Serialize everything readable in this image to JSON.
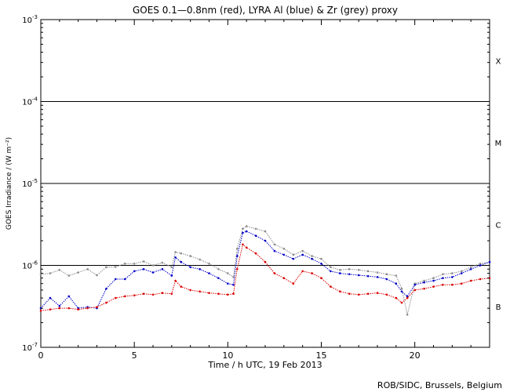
{
  "chart_data": {
    "type": "scatter",
    "title": "GOES 0.1—0.8nm (red), LYRA Al (blue) & Zr (grey) proxy",
    "xlabel": "Time / h UTC, 19 Feb 2013",
    "ylabel": "GOES Irradiance / (W m⁻²)",
    "xlim": [
      0,
      24
    ],
    "ylim": [
      1e-07,
      0.001
    ],
    "yscale": "log",
    "x_ticks": [
      0,
      5,
      10,
      15,
      20
    ],
    "x_tick_labels": [
      "0",
      "5",
      "10",
      "15",
      "20"
    ],
    "y_ticks": [
      {
        "value": 1e-07,
        "base": "10",
        "exp": "-7"
      },
      {
        "value": 1e-06,
        "base": "10",
        "exp": "-6"
      },
      {
        "value": 1e-05,
        "base": "10",
        "exp": "-5"
      },
      {
        "value": 0.0001,
        "base": "10",
        "exp": "-4"
      },
      {
        "value": 0.001,
        "base": "10",
        "exp": "-3"
      }
    ],
    "flare_classes": [
      {
        "label": "X",
        "center": 0.000316
      },
      {
        "label": "M",
        "center": 3.16e-05
      },
      {
        "label": "C",
        "center": 3.16e-06
      },
      {
        "label": "B",
        "center": 3.16e-07
      }
    ],
    "threshold_lines": [
      1e-06,
      1e-05,
      0.0001
    ],
    "series": [
      {
        "name": "Zr (grey) proxy",
        "color": "#8c8c8c",
        "x": [
          0,
          0.5,
          1,
          1.5,
          2,
          2.5,
          3,
          3.5,
          4,
          4.5,
          5,
          5.5,
          6,
          6.5,
          7,
          7.2,
          7.5,
          8,
          8.5,
          9,
          9.5,
          10,
          10.3,
          10.5,
          10.8,
          11,
          11.5,
          12,
          12.5,
          13,
          13.5,
          14,
          14.5,
          15,
          15.5,
          16,
          16.5,
          17,
          17.5,
          18,
          18.5,
          19,
          19.3,
          19.6,
          20,
          20.5,
          21,
          21.5,
          22,
          22.5,
          23,
          23.5,
          24
        ],
        "y": [
          7.8e-07,
          8e-07,
          8.8e-07,
          7.5e-07,
          8.2e-07,
          9e-07,
          7.6e-07,
          9.5e-07,
          9.6e-07,
          1.05e-06,
          1.05e-06,
          1.12e-06,
          1e-06,
          1.08e-06,
          9.5e-07,
          1.45e-06,
          1.4e-06,
          1.3e-06,
          1.18e-06,
          1.05e-06,
          9e-07,
          8e-07,
          7.2e-07,
          1.6e-06,
          2.8e-06,
          3e-06,
          2.8e-06,
          2.6e-06,
          1.8e-06,
          1.6e-06,
          1.35e-06,
          1.5e-06,
          1.3e-06,
          1.2e-06,
          9.5e-07,
          8.8e-07,
          9e-07,
          8.8e-07,
          8.5e-07,
          8.2e-07,
          7.8e-07,
          7.5e-07,
          5.2e-07,
          2.5e-07,
          6e-07,
          6.5e-07,
          7e-07,
          7.8e-07,
          8e-07,
          8.5e-07,
          9.5e-07,
          1.05e-06,
          1.1e-06
        ]
      },
      {
        "name": "LYRA Al (blue)",
        "color": "#0000c8",
        "x": [
          0,
          0.5,
          1,
          1.5,
          2,
          2.5,
          3,
          3.5,
          4,
          4.5,
          5,
          5.5,
          6,
          6.5,
          7,
          7.2,
          7.5,
          8,
          8.5,
          9,
          9.5,
          10,
          10.3,
          10.5,
          10.8,
          11,
          11.5,
          12,
          12.5,
          13,
          13.5,
          14,
          14.5,
          15,
          15.5,
          16,
          16.5,
          17,
          17.5,
          18,
          18.5,
          19,
          19.3,
          19.6,
          20,
          20.5,
          21,
          21.5,
          22,
          22.5,
          23,
          23.5,
          24
        ],
        "y": [
          3e-07,
          4e-07,
          3.2e-07,
          4.2e-07,
          3e-07,
          3.1e-07,
          3e-07,
          5.2e-07,
          6.8e-07,
          6.8e-07,
          8.5e-07,
          9e-07,
          8.2e-07,
          9e-07,
          7.5e-07,
          1.25e-06,
          1.1e-06,
          9.5e-07,
          9e-07,
          8e-07,
          7e-07,
          6e-07,
          5.8e-07,
          1.3e-06,
          2.5e-06,
          2.6e-06,
          2.3e-06,
          2e-06,
          1.5e-06,
          1.35e-06,
          1.2e-06,
          1.35e-06,
          1.2e-06,
          1.05e-06,
          8.5e-07,
          8e-07,
          7.8e-07,
          7.6e-07,
          7.4e-07,
          7.2e-07,
          6.8e-07,
          6e-07,
          4.8e-07,
          4.2e-07,
          5.8e-07,
          6.2e-07,
          6.5e-07,
          7e-07,
          7.2e-07,
          8e-07,
          9e-07,
          1e-06,
          1.1e-06
        ]
      },
      {
        "name": "GOES 0.1—0.8nm (red)",
        "color": "#dc0000",
        "x": [
          0,
          0.5,
          1,
          1.5,
          2,
          2.5,
          3,
          3.5,
          4,
          4.5,
          5,
          5.5,
          6,
          6.5,
          7,
          7.2,
          7.5,
          8,
          8.5,
          9,
          9.5,
          10,
          10.3,
          10.5,
          10.8,
          11,
          11.5,
          12,
          12.5,
          13,
          13.5,
          14,
          14.5,
          15,
          15.5,
          16,
          16.5,
          17,
          17.5,
          18,
          18.5,
          19,
          19.3,
          19.6,
          20,
          20.5,
          21,
          21.5,
          22,
          22.5,
          23,
          23.5,
          24
        ],
        "y": [
          2.8e-07,
          2.9e-07,
          3e-07,
          3e-07,
          2.9e-07,
          3e-07,
          3.1e-07,
          3.5e-07,
          4e-07,
          4.2e-07,
          4.3e-07,
          4.5e-07,
          4.4e-07,
          4.6e-07,
          4.5e-07,
          6.5e-07,
          5.5e-07,
          5e-07,
          4.8e-07,
          4.6e-07,
          4.5e-07,
          4.4e-07,
          4.5e-07,
          9e-07,
          1.8e-06,
          1.65e-06,
          1.4e-06,
          1.1e-06,
          8e-07,
          7e-07,
          6e-07,
          8.5e-07,
          8e-07,
          7e-07,
          5.5e-07,
          4.8e-07,
          4.5e-07,
          4.4e-07,
          4.5e-07,
          4.6e-07,
          4.4e-07,
          4e-07,
          3.5e-07,
          4e-07,
          5e-07,
          5.2e-07,
          5.5e-07,
          5.8e-07,
          5.8e-07,
          6e-07,
          6.5e-07,
          6.8e-07,
          7e-07
        ]
      }
    ]
  },
  "credit": "ROB/SIDC, Brussels, Belgium"
}
